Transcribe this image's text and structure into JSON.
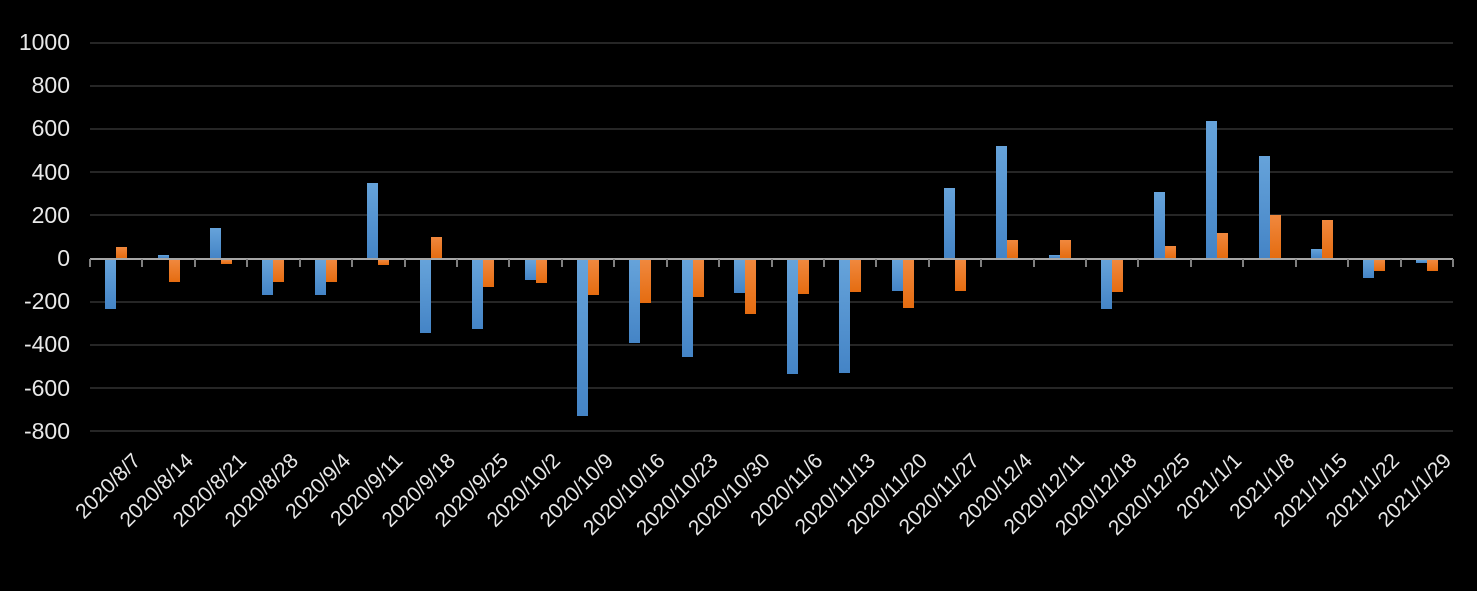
{
  "chart": {
    "background_color": "#000000",
    "text_color": "#e8e8e8"
  },
  "chart_data": {
    "type": "bar",
    "title": "",
    "xlabel": "",
    "ylabel": "",
    "legend": "none",
    "grid": true,
    "x_label_rotation": -45,
    "ylim": [
      -800,
      1000
    ],
    "y_ticks": [
      1000,
      800,
      600,
      400,
      200,
      0,
      -200,
      -400,
      -600,
      -800
    ],
    "categories": [
      "2020/8/7",
      "2020/8/14",
      "2020/8/21",
      "2020/8/28",
      "2020/9/4",
      "2020/9/11",
      "2020/9/18",
      "2020/9/25",
      "2020/10/2",
      "2020/10/9",
      "2020/10/16",
      "2020/10/23",
      "2020/10/30",
      "2020/11/6",
      "2020/11/13",
      "2020/11/20",
      "2020/11/27",
      "2020/12/4",
      "2020/12/11",
      "2020/12/18",
      "2020/12/25",
      "2021/1/1",
      "2021/1/8",
      "2021/1/15",
      "2021/1/22",
      "2021/1/29"
    ],
    "series": [
      {
        "id": "blue",
        "color": "#5B9BD5",
        "values": [
          -230,
          15,
          140,
          -165,
          -165,
          350,
          -340,
          -320,
          -95,
          -725,
          -385,
          -450,
          -155,
          -530,
          -525,
          -145,
          325,
          520,
          15,
          -230,
          310,
          635,
          475,
          45,
          -85,
          -15
        ]
      },
      {
        "id": "orange",
        "color": "#ED7D31",
        "values": [
          55,
          -105,
          -20,
          -105,
          -105,
          -25,
          100,
          -125,
          -110,
          -165,
          -200,
          -175,
          -250,
          -160,
          -150,
          -225,
          -145,
          85,
          85,
          -150,
          60,
          120,
          200,
          180,
          -55,
          -55
        ]
      }
    ]
  }
}
